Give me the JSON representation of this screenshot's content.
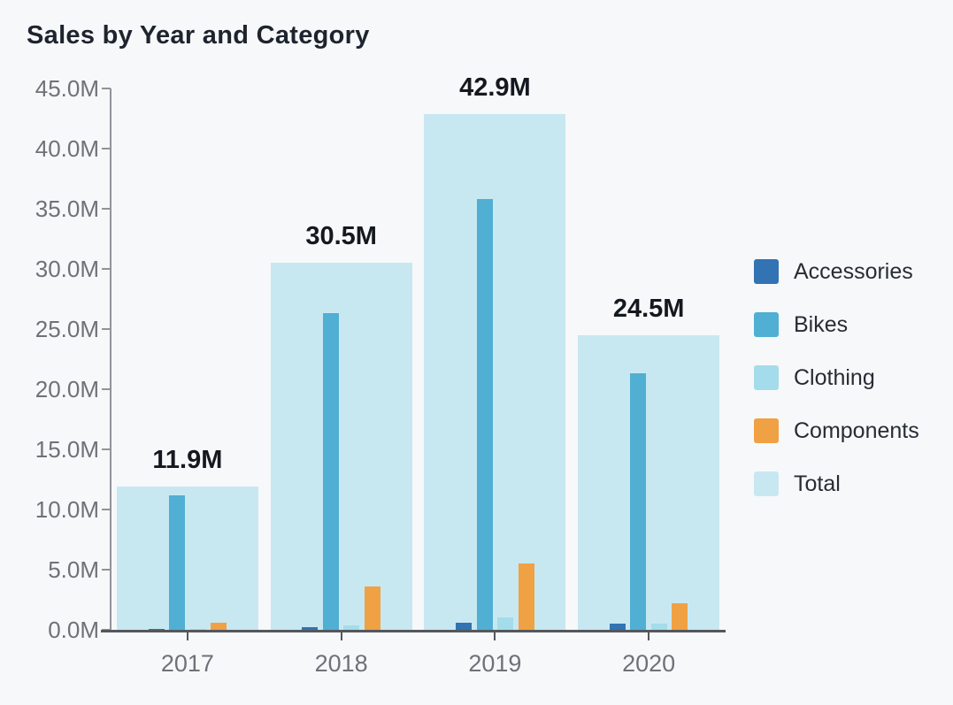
{
  "title": "Sales by Year and Category",
  "chart_data": {
    "type": "bar",
    "title": "Sales by Year and Category",
    "xlabel": "",
    "ylabel": "",
    "categories": [
      "2017",
      "2018",
      "2019",
      "2020"
    ],
    "series": [
      {
        "name": "Accessories",
        "color": "#3273B3",
        "values": [
          0.1,
          0.2,
          0.6,
          0.5
        ]
      },
      {
        "name": "Bikes",
        "color": "#50AFD2",
        "values": [
          11.2,
          26.3,
          35.8,
          21.3
        ]
      },
      {
        "name": "Clothing",
        "color": "#A4DCEB",
        "values": [
          0.05,
          0.4,
          1.0,
          0.5
        ]
      },
      {
        "name": "Components",
        "color": "#F0A143",
        "values": [
          0.6,
          3.6,
          5.5,
          2.2
        ]
      }
    ],
    "total_series": {
      "name": "Total",
      "color": "#C8E8F1",
      "values": [
        11.9,
        30.5,
        42.9,
        24.5
      ],
      "data_labels": [
        "11.9M",
        "30.5M",
        "42.9M",
        "24.5M"
      ]
    },
    "y_axis": {
      "min": 0,
      "max": 45,
      "step": 5,
      "tick_labels": [
        "0.0M",
        "5.0M",
        "10.0M",
        "15.0M",
        "20.0M",
        "25.0M",
        "30.0M",
        "35.0M",
        "40.0M",
        "45.0M"
      ]
    },
    "x_axis": {
      "tick_labels": [
        "2017",
        "2018",
        "2019",
        "2020"
      ]
    },
    "legend": {
      "position": "right",
      "items": [
        {
          "label": "Accessories",
          "color": "#3273B3"
        },
        {
          "label": "Bikes",
          "color": "#50AFD2"
        },
        {
          "label": "Clothing",
          "color": "#A4DCEB"
        },
        {
          "label": "Components",
          "color": "#F0A143"
        },
        {
          "label": "Total",
          "color": "#C8E8F1"
        }
      ]
    },
    "grid": false,
    "ylim": [
      0,
      45
    ]
  },
  "colors": {
    "background": "#F7F8FA",
    "title_text": "#1E242E",
    "axis_text": "#6E7278",
    "data_label_text": "#14181F",
    "y_axis_line": "#8F9499",
    "x_axis_line": "#54575C",
    "legend_text": "#272C35"
  }
}
